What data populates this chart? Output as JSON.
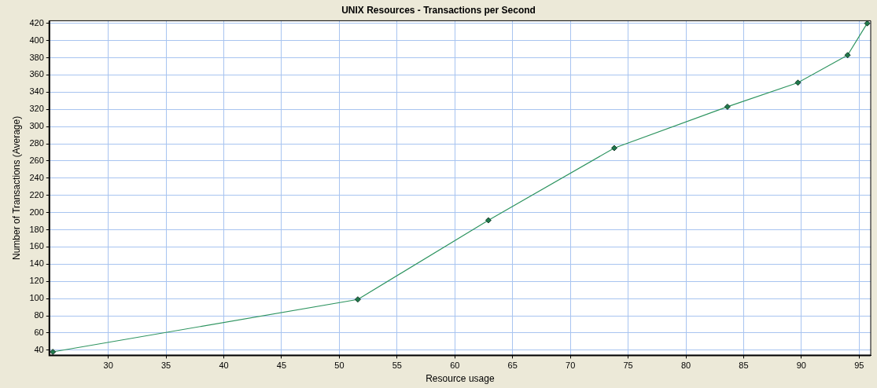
{
  "chart_data": {
    "type": "line",
    "title": "UNIX Resources - Transactions per Second",
    "xlabel": "Resource usage",
    "ylabel": "Number of Transactions (Average)",
    "x": [
      25.2,
      51.6,
      62.9,
      73.8,
      83.6,
      89.7,
      94.0,
      95.7
    ],
    "series": [
      {
        "color": "#2e9460",
        "values": [
          38,
          99,
          191,
          275,
          323,
          351,
          383,
          420
        ]
      }
    ],
    "xlim": [
      24.9,
      96
    ],
    "xticks": [
      30,
      35,
      40,
      45,
      50,
      55,
      60,
      65,
      70,
      75,
      80,
      85,
      90,
      95
    ],
    "ylim": [
      34,
      423
    ],
    "yticks": [
      40,
      60,
      80,
      100,
      120,
      140,
      160,
      180,
      200,
      220,
      240,
      260,
      280,
      300,
      320,
      340,
      360,
      380,
      400,
      420
    ],
    "grid": true,
    "legend": false,
    "marker": "diamond",
    "line_style": "solid"
  }
}
